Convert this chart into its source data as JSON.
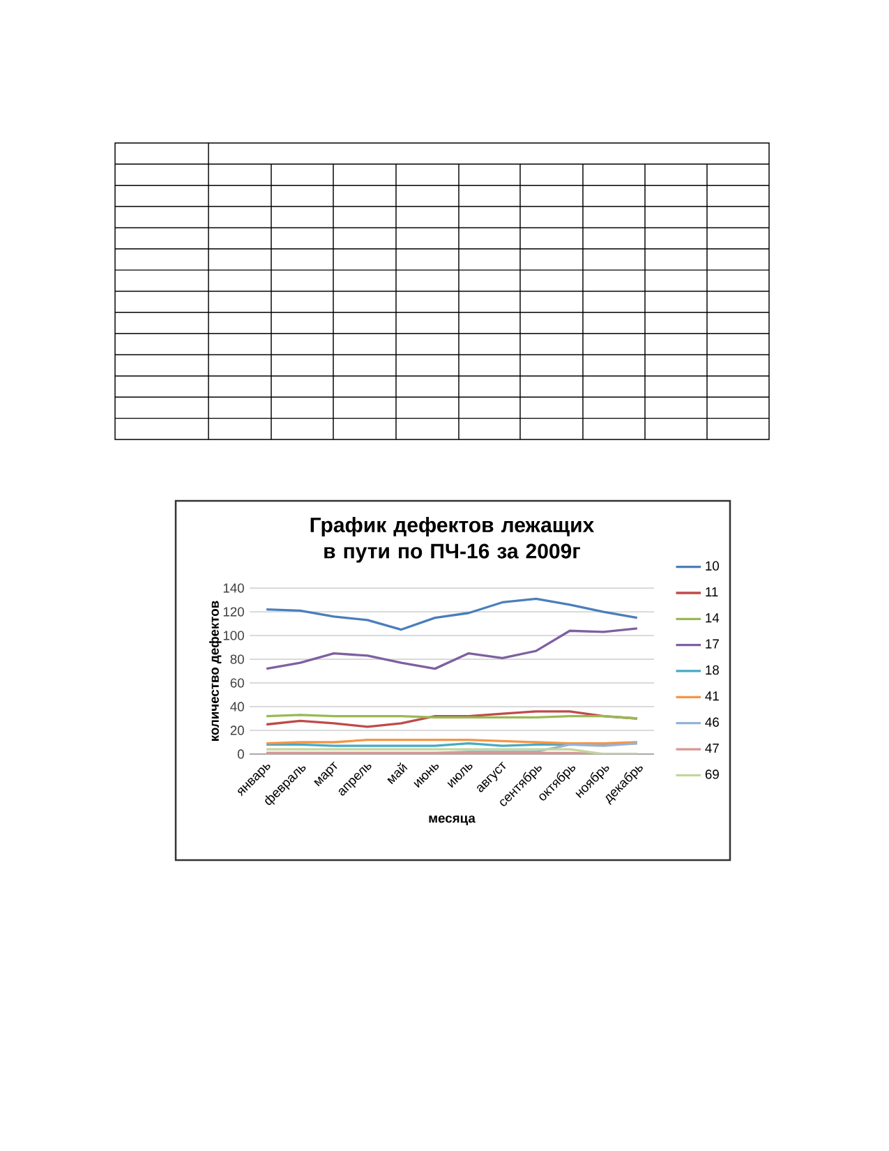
{
  "chart_data": {
    "type": "line",
    "title": "График дефектов лежащих в пути по ПЧ-16 за 2009г",
    "xlabel": "месяца",
    "ylabel": "количество дефектов",
    "categories": [
      "январь",
      "февраль",
      "март",
      "апрель",
      "май",
      "июнь",
      "июль",
      "август",
      "сентябрь",
      "октябрь",
      "ноябрь",
      "декабрь"
    ],
    "series": [
      {
        "name": "10",
        "color": "#4a7ebb",
        "values": [
          122,
          121,
          116,
          113,
          105,
          115,
          119,
          128,
          131,
          126,
          120,
          115
        ]
      },
      {
        "name": "11",
        "color": "#be4b48",
        "values": [
          25,
          28,
          26,
          23,
          26,
          32,
          32,
          34,
          36,
          36,
          32,
          30
        ]
      },
      {
        "name": "14",
        "color": "#98b954",
        "values": [
          32,
          33,
          32,
          32,
          32,
          31,
          31,
          31,
          31,
          32,
          32,
          30
        ]
      },
      {
        "name": "17",
        "color": "#7d60a0",
        "values": [
          72,
          77,
          85,
          83,
          77,
          72,
          85,
          81,
          87,
          104,
          103,
          106
        ]
      },
      {
        "name": "18",
        "color": "#46aac5",
        "values": [
          8,
          8,
          7,
          7,
          7,
          7,
          9,
          7,
          8,
          8,
          8,
          9
        ]
      },
      {
        "name": "41",
        "color": "#f69545",
        "values": [
          9,
          10,
          10,
          12,
          12,
          12,
          12,
          11,
          10,
          9,
          9,
          10
        ]
      },
      {
        "name": "46",
        "color": "#95b3d7",
        "values": [
          1,
          1,
          1,
          1,
          1,
          1,
          2,
          2,
          2,
          8,
          7,
          9
        ]
      },
      {
        "name": "47",
        "color": "#d99694",
        "values": [
          1,
          1,
          1,
          1,
          1,
          1,
          1,
          1,
          1,
          1,
          0,
          0
        ]
      },
      {
        "name": "69",
        "color": "#c3d69b",
        "values": [
          4,
          4,
          4,
          4,
          4,
          4,
          4,
          4,
          4,
          4,
          0,
          0
        ]
      }
    ],
    "ylim": [
      0,
      140
    ],
    "yticks": [
      0,
      20,
      40,
      60,
      80,
      100,
      120,
      140
    ],
    "grid": "y",
    "legend": "right",
    "marker": "none",
    "line_style": "solid"
  }
}
